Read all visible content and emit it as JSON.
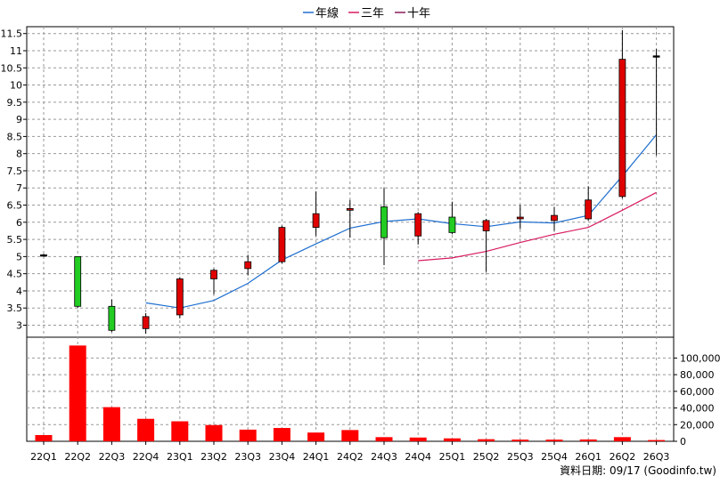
{
  "legend": [
    {
      "name": "年線",
      "color": "#1f6fd0"
    },
    {
      "name": "三年",
      "color": "#d81b60"
    },
    {
      "name": "十年",
      "color": "#8b1a5a"
    }
  ],
  "source_note": "資料日期: 09/17 (Goodinfo.tw)",
  "colors": {
    "up": "#e00000",
    "down": "#22cc22",
    "volume": "#ff0000",
    "wick": "#000000",
    "grid": "#999999"
  },
  "chart_data": {
    "type": "candlestick+bar",
    "categories": [
      "22Q1",
      "22Q2",
      "22Q3",
      "22Q4",
      "23Q1",
      "23Q2",
      "23Q3",
      "23Q4",
      "24Q1",
      "24Q2",
      "24Q3",
      "24Q4",
      "25Q1",
      "25Q2",
      "25Q3",
      "25Q4",
      "26Q1",
      "26Q2",
      "26Q3"
    ],
    "price_axis": {
      "ylim": [
        2.65,
        11.7
      ],
      "ticks": [
        3,
        3.5,
        4,
        4.5,
        5,
        5.5,
        6,
        6.5,
        7,
        7.5,
        8,
        8.5,
        9,
        9.5,
        10,
        10.5,
        11,
        11.5
      ]
    },
    "ohlc": [
      {
        "open": 5.05,
        "high": 5.08,
        "low": 5.02,
        "close": 5.05
      },
      {
        "open": 5.0,
        "high": 5.0,
        "low": 3.5,
        "close": 3.55
      },
      {
        "open": 3.55,
        "high": 3.75,
        "low": 2.8,
        "close": 2.85
      },
      {
        "open": 2.9,
        "high": 3.35,
        "low": 2.75,
        "close": 3.25
      },
      {
        "open": 3.3,
        "high": 4.4,
        "low": 3.2,
        "close": 4.35
      },
      {
        "open": 4.35,
        "high": 4.65,
        "low": 3.9,
        "close": 4.6
      },
      {
        "open": 4.65,
        "high": 5.05,
        "low": 4.45,
        "close": 4.85
      },
      {
        "open": 4.85,
        "high": 5.9,
        "low": 4.8,
        "close": 5.85
      },
      {
        "open": 5.85,
        "high": 6.9,
        "low": 5.6,
        "close": 6.25
      },
      {
        "open": 6.35,
        "high": 6.65,
        "low": 5.55,
        "close": 6.4
      },
      {
        "open": 6.45,
        "high": 7.0,
        "low": 4.75,
        "close": 5.55
      },
      {
        "open": 5.6,
        "high": 6.3,
        "low": 5.35,
        "close": 6.25
      },
      {
        "open": 6.15,
        "high": 6.6,
        "low": 5.65,
        "close": 5.7
      },
      {
        "open": 5.75,
        "high": 6.1,
        "low": 4.55,
        "close": 6.05
      },
      {
        "open": 6.1,
        "high": 6.5,
        "low": 5.8,
        "close": 6.15
      },
      {
        "open": 6.05,
        "high": 6.45,
        "low": 5.75,
        "close": 6.2
      },
      {
        "open": 6.1,
        "high": 7.05,
        "low": 6.05,
        "close": 6.65
      },
      {
        "open": 6.75,
        "high": 11.6,
        "low": 6.7,
        "close": 10.75
      },
      {
        "open": 10.85,
        "high": 11.05,
        "low": 7.95,
        "close": 10.85
      }
    ],
    "series": [
      {
        "name": "年線",
        "color": "#1f6fd0",
        "values": [
          null,
          null,
          null,
          3.65,
          3.5,
          3.72,
          4.22,
          4.9,
          5.37,
          5.83,
          6.02,
          6.1,
          5.96,
          5.87,
          6.01,
          5.98,
          6.2,
          7.35,
          8.55
        ]
      },
      {
        "name": "三年",
        "color": "#d81b60",
        "values": [
          null,
          null,
          null,
          null,
          null,
          null,
          null,
          null,
          null,
          null,
          null,
          4.88,
          4.96,
          5.15,
          5.41,
          5.65,
          5.85,
          6.35,
          6.87
        ]
      }
    ],
    "volume": {
      "ylim": [
        0,
        125000
      ],
      "ticks": [
        0,
        20000,
        40000,
        60000,
        80000,
        100000
      ],
      "tick_labels": [
        "0",
        "20,000",
        "40,000",
        "60,000",
        "80,000",
        "100,000"
      ],
      "values": [
        7500,
        115000,
        41000,
        27000,
        24000,
        19500,
        14000,
        16000,
        10500,
        13500,
        5000,
        4500,
        3500,
        2500,
        2000,
        2000,
        2200,
        5000,
        1500
      ]
    }
  }
}
